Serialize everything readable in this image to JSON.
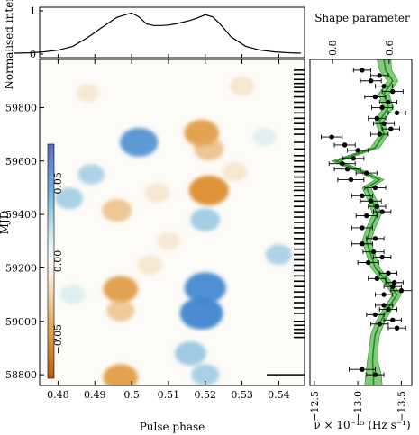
{
  "chart_data": [
    {
      "type": "line",
      "panel": "profile",
      "ylabel": "Normalised intensity",
      "ylim": [
        0,
        1
      ],
      "yticks": [
        "0",
        "1"
      ],
      "x": [
        0.468,
        0.472,
        0.476,
        0.48,
        0.484,
        0.488,
        0.492,
        0.496,
        0.499,
        0.5,
        0.502,
        0.504,
        0.506,
        0.508,
        0.51,
        0.512,
        0.514,
        0.516,
        0.518,
        0.52,
        0.522,
        0.524,
        0.527,
        0.531,
        0.535,
        0.539,
        0.543,
        0.546
      ],
      "y": [
        0.02,
        0.03,
        0.05,
        0.09,
        0.18,
        0.38,
        0.62,
        0.85,
        0.93,
        0.95,
        0.86,
        0.7,
        0.66,
        0.66,
        0.67,
        0.7,
        0.74,
        0.78,
        0.84,
        0.91,
        0.86,
        0.7,
        0.4,
        0.18,
        0.09,
        0.05,
        0.03,
        0.02
      ]
    },
    {
      "type": "heatmap",
      "panel": "residual-map",
      "xlabel": "Pulse phase",
      "ylabel": "MJD",
      "xlim": [
        0.475,
        0.547
      ],
      "ylim": [
        58760,
        59980
      ],
      "xticks": [
        "0.48",
        "0.49",
        "0.5",
        "0.51",
        "0.52",
        "0.53",
        "0.54"
      ],
      "yticks": [
        "58800",
        "59000",
        "59200",
        "59400",
        "59600",
        "59800"
      ],
      "colorbar": {
        "ticks": [
          "0.05",
          "0.00",
          "−0.05"
        ],
        "range": [
          -0.075,
          0.075
        ]
      },
      "blobs": [
        {
          "phase": 0.502,
          "mjd": 59670,
          "value": 0.06
        },
        {
          "phase": 0.519,
          "mjd": 59705,
          "value": -0.05
        },
        {
          "phase": 0.521,
          "mjd": 59645,
          "value": -0.035
        },
        {
          "phase": 0.521,
          "mjd": 59490,
          "value": -0.065
        },
        {
          "phase": 0.507,
          "mjd": 59480,
          "value": -0.02
        },
        {
          "phase": 0.496,
          "mjd": 59415,
          "value": -0.035
        },
        {
          "phase": 0.52,
          "mjd": 59380,
          "value": 0.035
        },
        {
          "phase": 0.483,
          "mjd": 59460,
          "value": 0.03
        },
        {
          "phase": 0.489,
          "mjd": 59550,
          "value": 0.025
        },
        {
          "phase": 0.497,
          "mjd": 59120,
          "value": -0.05
        },
        {
          "phase": 0.52,
          "mjd": 59125,
          "value": 0.07
        },
        {
          "phase": 0.497,
          "mjd": 59040,
          "value": -0.03
        },
        {
          "phase": 0.519,
          "mjd": 59030,
          "value": 0.075
        },
        {
          "phase": 0.505,
          "mjd": 59210,
          "value": -0.02
        },
        {
          "phase": 0.516,
          "mjd": 58880,
          "value": 0.04
        },
        {
          "phase": 0.497,
          "mjd": 58790,
          "value": -0.05
        },
        {
          "phase": 0.52,
          "mjd": 58800,
          "value": 0.03
        },
        {
          "phase": 0.51,
          "mjd": 59300,
          "value": -0.015
        },
        {
          "phase": 0.528,
          "mjd": 59560,
          "value": -0.02
        },
        {
          "phase": 0.488,
          "mjd": 59855,
          "value": -0.015
        },
        {
          "phase": 0.53,
          "mjd": 59880,
          "value": -0.02
        },
        {
          "phase": 0.54,
          "mjd": 59250,
          "value": 0.025
        },
        {
          "phase": 0.484,
          "mjd": 59100,
          "value": 0.02
        },
        {
          "phase": 0.536,
          "mjd": 59690,
          "value": 0.015
        }
      ],
      "observation_epochs": [
        59940,
        59925,
        59905,
        59890,
        59875,
        59860,
        59840,
        59820,
        59800,
        59780,
        59760,
        59740,
        59720,
        59700,
        59670,
        59645,
        59620,
        59600,
        59580,
        59560,
        59540,
        59520,
        59505,
        59490,
        59470,
        59450,
        59430,
        59410,
        59390,
        59370,
        59350,
        59330,
        59310,
        59290,
        59270,
        59250,
        59230,
        59210,
        59190,
        59170,
        59150,
        59130,
        59110,
        59090,
        59070,
        59050,
        59030,
        59000,
        58985,
        58970,
        58955,
        58940,
        58800
      ],
      "long_marks": [
        58800
      ]
    },
    {
      "type": "line",
      "panel": "spin-down",
      "xlabel": "ν̇ × 10⁻¹⁵ (Hz s⁻¹)",
      "top_xlabel": "Shape parameter",
      "xlim": [
        -12.45,
        -13.62
      ],
      "xticks": [
        "−12.5",
        "−13.0",
        "−13.5"
      ],
      "top_xlim": [
        0.88,
        0.52
      ],
      "top_xticks": [
        "0.8",
        "0.6"
      ],
      "curve": {
        "mjd": [
          58760,
          58800,
          58850,
          58900,
          58950,
          59000,
          59050,
          59100,
          59150,
          59200,
          59250,
          59300,
          59350,
          59400,
          59450,
          59500,
          59530,
          59560,
          59600,
          59650,
          59700,
          59750,
          59800,
          59850,
          59900,
          59940,
          59980
        ],
        "value": [
          -13.18,
          -13.18,
          -13.17,
          -13.18,
          -13.2,
          -13.26,
          -13.35,
          -13.45,
          -13.33,
          -13.2,
          -13.15,
          -13.1,
          -13.15,
          -13.22,
          -13.17,
          -13.1,
          -13.25,
          -13.05,
          -12.75,
          -13.2,
          -13.3,
          -13.25,
          -13.35,
          -13.3,
          -13.4,
          -13.32,
          -13.3
        ],
        "err": [
          0.1,
          0.09,
          0.06,
          0.05,
          0.05,
          0.05,
          0.05,
          0.05,
          0.05,
          0.05,
          0.05,
          0.05,
          0.05,
          0.05,
          0.05,
          0.05,
          0.05,
          0.05,
          0.05,
          0.05,
          0.05,
          0.05,
          0.06,
          0.06,
          0.06,
          0.07,
          0.08
        ]
      },
      "points": {
        "mjd": [
          59940,
          59920,
          59900,
          59880,
          59860,
          59840,
          59820,
          59800,
          59780,
          59760,
          59740,
          59720,
          59700,
          59690,
          59660,
          59640,
          59610,
          59590,
          59570,
          59555,
          59530,
          59500,
          59470,
          59450,
          59430,
          59410,
          59395,
          59350,
          59310,
          59290,
          59260,
          59240,
          59220,
          59180,
          59160,
          59145,
          59130,
          59115,
          59100,
          59060,
          59045,
          59025,
          59005,
          58990,
          58975,
          58820,
          58800
        ],
        "value": [
          -13.05,
          -13.25,
          -13.15,
          -13.3,
          -13.4,
          -13.2,
          -13.35,
          -13.28,
          -13.45,
          -13.22,
          -13.3,
          -13.38,
          -13.25,
          -12.7,
          -12.85,
          -13.0,
          -12.95,
          -12.82,
          -12.88,
          -13.1,
          -12.92,
          -13.2,
          -13.05,
          -13.15,
          -13.22,
          -13.28,
          -13.1,
          -13.05,
          -13.2,
          -13.05,
          -13.18,
          -13.28,
          -13.12,
          -13.35,
          -13.22,
          -13.42,
          -13.4,
          -13.5,
          -13.3,
          -13.3,
          -13.35,
          -13.2,
          -13.4,
          -13.25,
          -13.45,
          -13.05,
          -13.2
        ],
        "err": [
          0.1,
          0.1,
          0.12,
          0.1,
          0.12,
          0.12,
          0.1,
          0.12,
          0.1,
          0.1,
          0.12,
          0.1,
          0.1,
          0.12,
          0.12,
          0.12,
          0.12,
          0.15,
          0.15,
          0.12,
          0.15,
          0.12,
          0.12,
          0.12,
          0.1,
          0.1,
          0.12,
          0.12,
          0.1,
          0.12,
          0.12,
          0.1,
          0.12,
          0.1,
          0.1,
          0.1,
          0.1,
          0.12,
          0.1,
          0.1,
          0.1,
          0.1,
          0.1,
          0.1,
          0.1,
          0.15,
          0.1
        ]
      },
      "colors": {
        "curve": "#1e8f1e",
        "band": "#84c97d",
        "points": "#000000"
      }
    }
  ]
}
